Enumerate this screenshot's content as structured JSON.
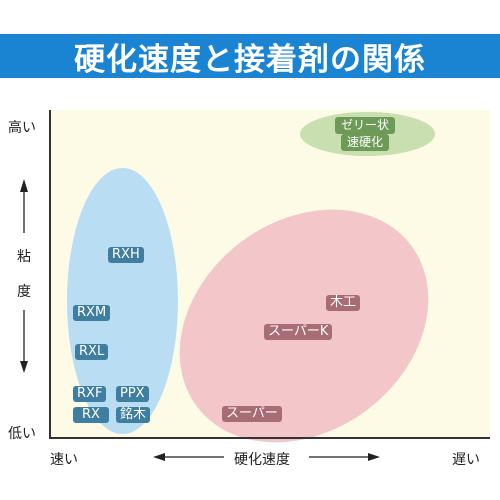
{
  "title": "硬化速度と接着剤の関係",
  "axes": {
    "y_high": "高い",
    "y_low": "低い",
    "y_label_1": "粘",
    "y_label_2": "度",
    "x_left": "速い",
    "x_center": "硬化速度",
    "x_right": "遅い"
  },
  "groups": {
    "fast": [
      "RXH",
      "RXM",
      "RXL",
      "RXF",
      "PPX",
      "RX",
      "銘木"
    ],
    "slow": [
      "木工",
      "スーパーK",
      "スーパー"
    ],
    "gel": [
      "ゼリー状",
      "速硬化"
    ]
  },
  "colors": {
    "title_bar": "#1a84d2",
    "plot_background": "#fdfae6",
    "blue_ellipse": "#b9ddf3",
    "pink_ellipse": "#f3c7c9",
    "green_ellipse": "#c9dfb0",
    "blue_tag": "#3f7e9e",
    "red_tag": "#a86c74",
    "green_tag": "#6e9a57"
  }
}
